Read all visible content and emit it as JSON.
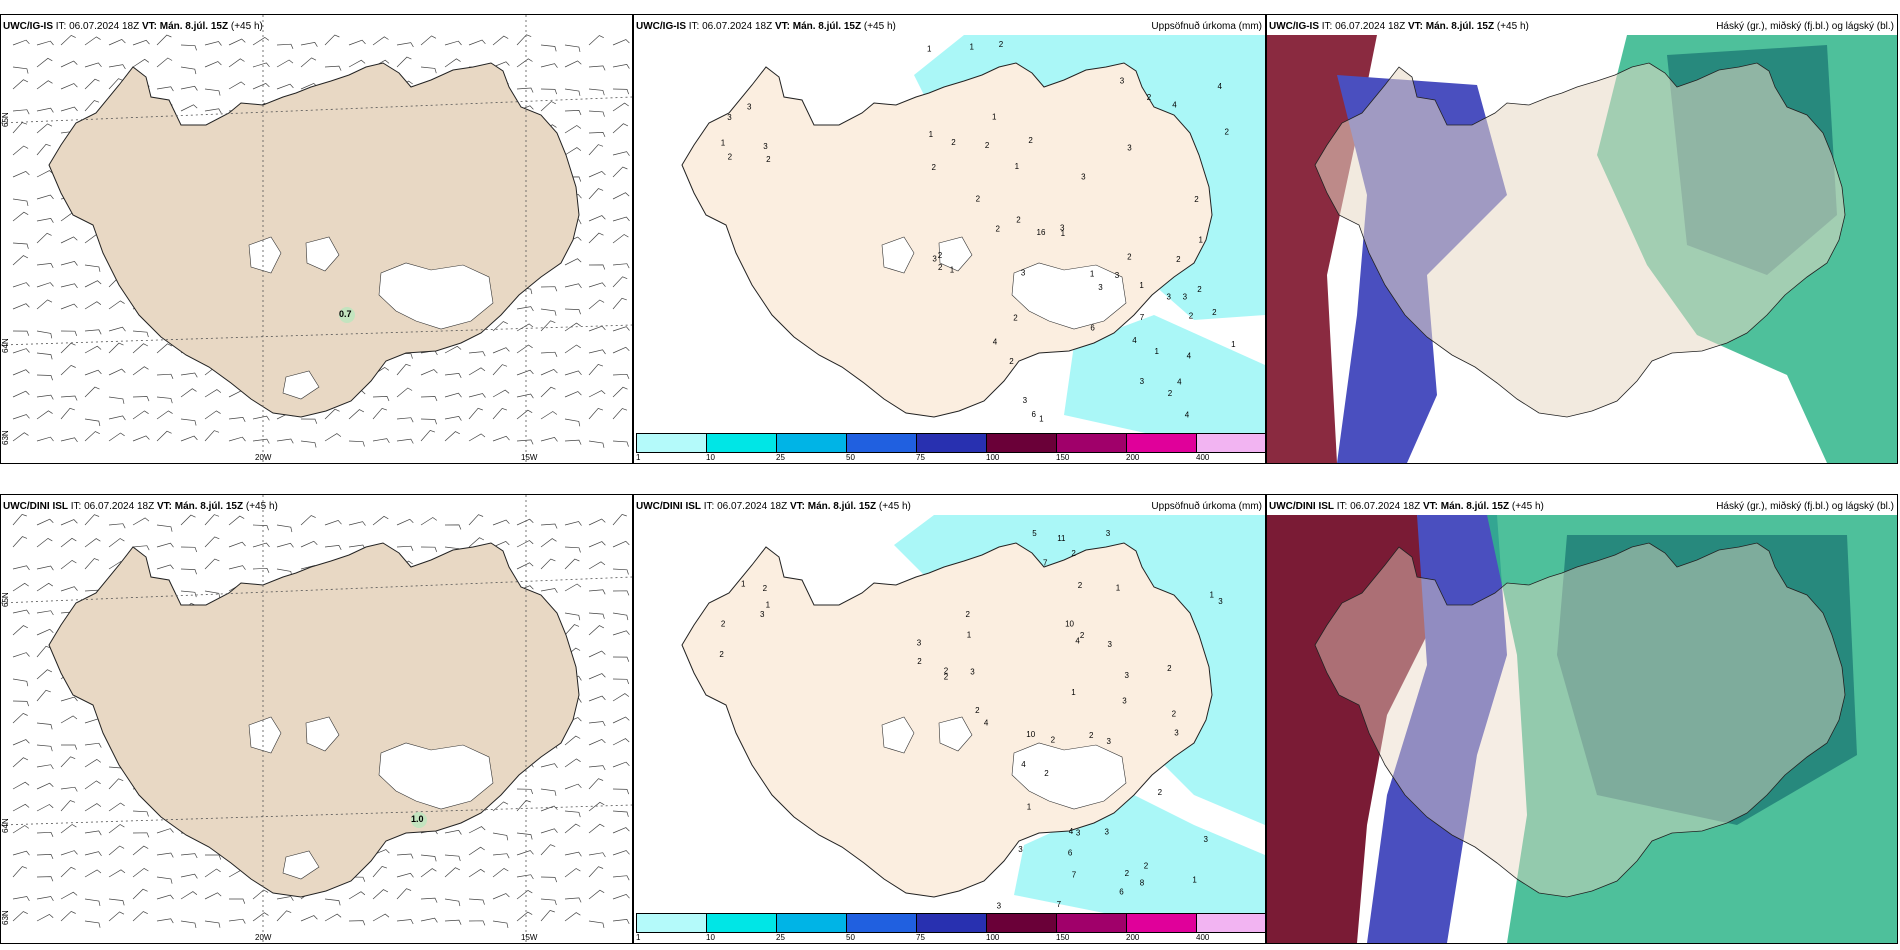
{
  "rows": [
    {
      "model": "UWC/IG-IS",
      "it_label": "IT: 06.07.2024 18Z",
      "vt_label": "VT: Mán. 8.júl. 15Z",
      "lead": "(+45 h)",
      "wind_value": "0.7",
      "precip_title": "Uppsöfnuð úrkoma (mm)",
      "cloud_title": "Háský (gr.), miðský (fj.bl.) og lágský (bl.)"
    },
    {
      "model": "UWC/DINI ISL",
      "it_label": "IT: 06.07.2024 18Z",
      "vt_label": "VT: Mán. 8.júl. 15Z",
      "lead": "(+45 h)",
      "wind_value": "1.0",
      "precip_title": "Uppsöfnuð úrkoma (mm)",
      "cloud_title": "Háský (gr.), miðský (fj.bl.) og lágský (bl.)"
    }
  ],
  "axes": {
    "lon_20": "20W",
    "lon_15": "15W",
    "lat_65": "65N",
    "lat_64": "64N",
    "lat_63": "63N"
  },
  "colorbar": {
    "ticks": [
      "1",
      "10",
      "25",
      "50",
      "75",
      "100",
      "150",
      "200",
      "400"
    ],
    "colors": [
      "#b4fafa",
      "#00e6e6",
      "#00b4e6",
      "#2060e0",
      "#2830b0",
      "#6a0038",
      "#a0006a",
      "#e0009a",
      "#f2b4f2"
    ]
  },
  "colors": {
    "land": "#e8d8c4",
    "land_precip": "#fbeee0",
    "precip_light": "#aaf7f7",
    "high_cloud": "#7a1b35",
    "mid_cloud": "#4a4fbf",
    "low_cloud": "#2fb58a"
  },
  "precip_labels_top": [
    "1",
    "2",
    "3",
    "2",
    "3",
    "3",
    "1",
    "3",
    "1",
    "2",
    "3",
    "2",
    "4",
    "2",
    "3",
    "2",
    "3",
    "2",
    "2",
    "3",
    "1",
    "2",
    "4",
    "3",
    "2",
    "16",
    "1",
    "1",
    "2",
    "1",
    "2",
    "1",
    "2",
    "3",
    "2",
    "2",
    "2",
    "1",
    "1",
    "2",
    "3",
    "1",
    "2",
    "3",
    "3",
    "4",
    "3",
    "2",
    "1",
    "1",
    "1",
    "2",
    "3",
    "6",
    "7",
    "6",
    "4",
    "4",
    "4",
    "2",
    "2",
    "4",
    "2"
  ],
  "precip_labels_bottom": [
    "2",
    "1",
    "2",
    "2",
    "3",
    "1",
    "3",
    "4",
    "2",
    "5",
    "3",
    "3",
    "2",
    "4",
    "3",
    "11",
    "7",
    "2",
    "10",
    "10",
    "2",
    "3",
    "2",
    "3",
    "2",
    "4",
    "2",
    "1",
    "2",
    "2",
    "1",
    "3",
    "1",
    "2",
    "3",
    "2",
    "2",
    "3",
    "2",
    "1",
    "2",
    "6",
    "7",
    "8",
    "3",
    "7",
    "3",
    "3",
    "6",
    "2",
    "4",
    "1",
    "1",
    "3",
    "3",
    "2"
  ]
}
